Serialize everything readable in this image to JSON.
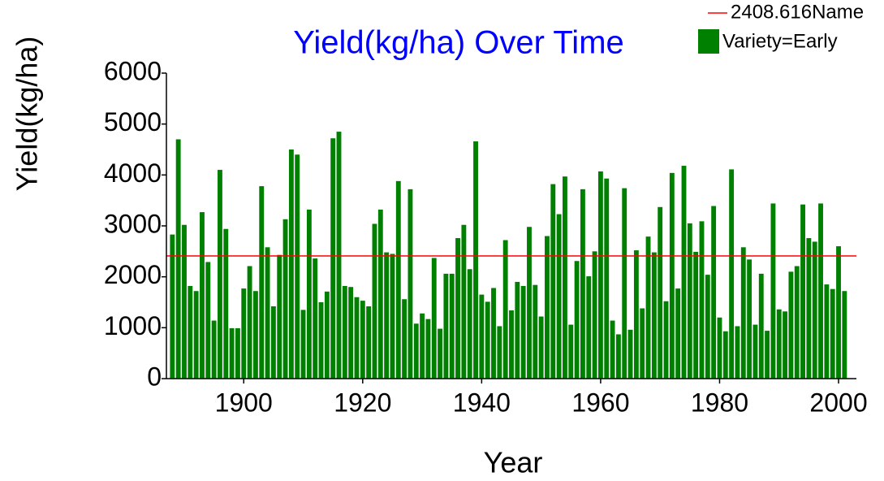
{
  "chart_data": {
    "type": "bar",
    "title": "Yield(kg/ha) Over Time",
    "x_label": "Year",
    "y_label": "Yield(kg/ha)",
    "series": [
      {
        "name": "Variety=Early",
        "color": "#008000",
        "x": [
          1888,
          1889,
          1890,
          1891,
          1892,
          1893,
          1894,
          1895,
          1896,
          1897,
          1898,
          1899,
          1900,
          1901,
          1902,
          1903,
          1904,
          1905,
          1906,
          1907,
          1908,
          1909,
          1910,
          1911,
          1912,
          1913,
          1914,
          1915,
          1916,
          1917,
          1918,
          1919,
          1920,
          1921,
          1922,
          1923,
          1924,
          1925,
          1926,
          1927,
          1928,
          1929,
          1930,
          1931,
          1932,
          1933,
          1934,
          1935,
          1936,
          1937,
          1938,
          1939,
          1940,
          1941,
          1942,
          1943,
          1944,
          1945,
          1946,
          1947,
          1948,
          1949,
          1950,
          1951,
          1952,
          1953,
          1954,
          1955,
          1956,
          1957,
          1958,
          1959,
          1960,
          1961,
          1962,
          1963,
          1964,
          1965,
          1966,
          1967,
          1968,
          1969,
          1970,
          1971,
          1972,
          1973,
          1974,
          1975,
          1976,
          1977,
          1978,
          1979,
          1980,
          1981,
          1982,
          1983,
          1984,
          1985,
          1986,
          1987,
          1988,
          1989,
          1990,
          1991,
          1992,
          1993,
          1994,
          1995,
          1996,
          1997,
          1998,
          1999,
          2000,
          2001
        ],
        "values": [
          2830,
          4700,
          3020,
          1820,
          1720,
          3270,
          2290,
          1140,
          4100,
          2940,
          990,
          990,
          1770,
          2210,
          1720,
          3780,
          2580,
          1420,
          2430,
          3130,
          4500,
          4400,
          1350,
          3320,
          2360,
          1500,
          1710,
          4720,
          4850,
          1820,
          1800,
          1600,
          1530,
          1420,
          3040,
          3320,
          2480,
          2450,
          3880,
          1560,
          3720,
          1080,
          1280,
          1170,
          2370,
          980,
          2060,
          2060,
          2760,
          3020,
          2150,
          4660,
          1650,
          1510,
          1780,
          1030,
          2720,
          1340,
          1900,
          1820,
          2980,
          1840,
          1220,
          2800,
          3820,
          3230,
          3970,
          1060,
          2310,
          3720,
          2010,
          2500,
          4070,
          3930,
          1140,
          870,
          3740,
          960,
          2520,
          1380,
          2790,
          2480,
          3370,
          1520,
          4040,
          1770,
          4180,
          3050,
          2490,
          3090,
          2040,
          3390,
          1200,
          930,
          4110,
          1030,
          2580,
          2340,
          1060,
          2060,
          940,
          3440,
          1360,
          1320,
          2100,
          2210,
          3420,
          2760,
          2690,
          3440,
          1850,
          1760,
          2600,
          1720
        ]
      }
    ],
    "hline": {
      "name": "2408.616Name",
      "value": 2408.616,
      "color": "#ff0000"
    },
    "xlim": [
      1887,
      2003
    ],
    "xticks": [
      1900,
      1920,
      1940,
      1960,
      1980,
      2000
    ],
    "ylim": [
      0,
      6000
    ],
    "yticks": [
      0,
      1000,
      2000,
      3000,
      4000,
      5000,
      6000
    ]
  }
}
